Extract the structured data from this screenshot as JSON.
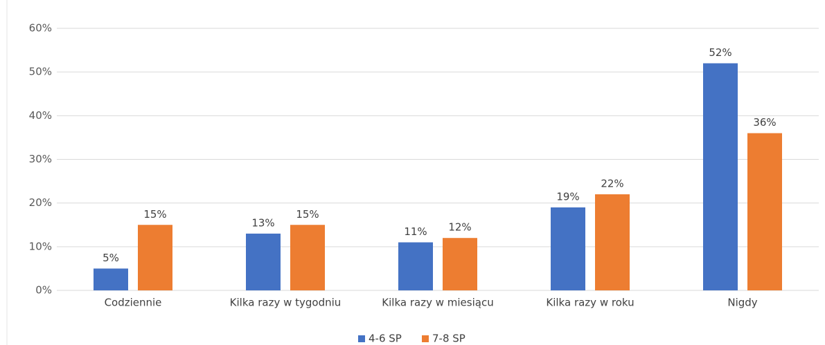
{
  "chart_data": {
    "type": "bar",
    "categories": [
      "Codziennie",
      "Kilka razy w tygodniu",
      "Kilka razy w miesiącu",
      "Kilka razy w roku",
      "Nigdy"
    ],
    "series": [
      {
        "name": "4-6 SP",
        "color": "#4472c4",
        "values": [
          5,
          13,
          11,
          19,
          52
        ],
        "value_labels": [
          "5%",
          "13%",
          "11%",
          "19%",
          "52%"
        ]
      },
      {
        "name": "7-8 SP",
        "color": "#ed7d31",
        "values": [
          15,
          15,
          12,
          22,
          36
        ],
        "value_labels": [
          "15%",
          "15%",
          "12%",
          "22%",
          "36%"
        ]
      }
    ],
    "ylim": [
      0,
      60
    ],
    "yticks": [
      {
        "value": 0,
        "label": "0%"
      },
      {
        "value": 10,
        "label": "10%"
      },
      {
        "value": 20,
        "label": "20%"
      },
      {
        "value": 30,
        "label": "30%"
      },
      {
        "value": 40,
        "label": "40%"
      },
      {
        "value": 50,
        "label": "50%"
      },
      {
        "value": 60,
        "label": "60%"
      }
    ],
    "grid": true,
    "legend": "bottom"
  }
}
